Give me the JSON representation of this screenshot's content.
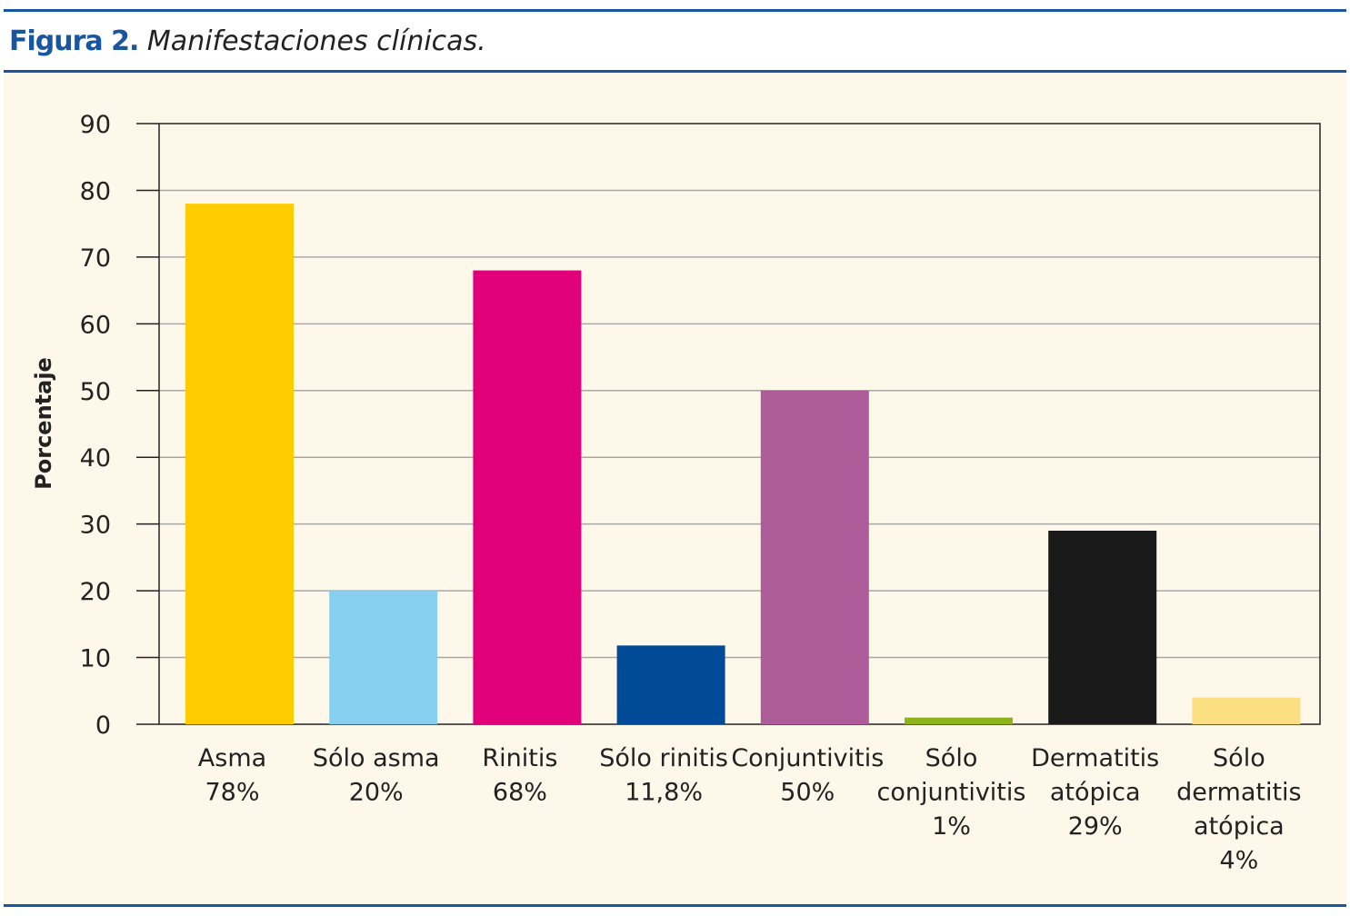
{
  "figure_label": "Figura 2.",
  "caption": "Manifestaciones clínicas.",
  "chart_data": {
    "type": "bar",
    "title": "",
    "xlabel": "",
    "ylabel": "Porcentaje",
    "ylim": [
      0,
      90
    ],
    "yticks": [
      0,
      10,
      20,
      30,
      40,
      50,
      60,
      70,
      80,
      90
    ],
    "grid": true,
    "categories": [
      [
        "Asma",
        "78%"
      ],
      [
        "Sólo asma",
        "20%"
      ],
      [
        "Rinitis",
        "68%"
      ],
      [
        "Sólo rinitis",
        "11,8%"
      ],
      [
        "Conjuntivitis",
        "50%"
      ],
      [
        "Sólo",
        "conjuntivitis",
        "1%"
      ],
      [
        "Dermatitis",
        "atópica",
        "29%"
      ],
      [
        "Sólo",
        "dermatitis",
        "atópica",
        "4%"
      ]
    ],
    "values": [
      78,
      20,
      68,
      11.8,
      50,
      1,
      29,
      4
    ],
    "colors": [
      "#ffcc00",
      "#87cfef",
      "#e2007a",
      "#004a97",
      "#ad5c99",
      "#8cb31a",
      "#1a1a1a",
      "#fbdf80"
    ]
  }
}
